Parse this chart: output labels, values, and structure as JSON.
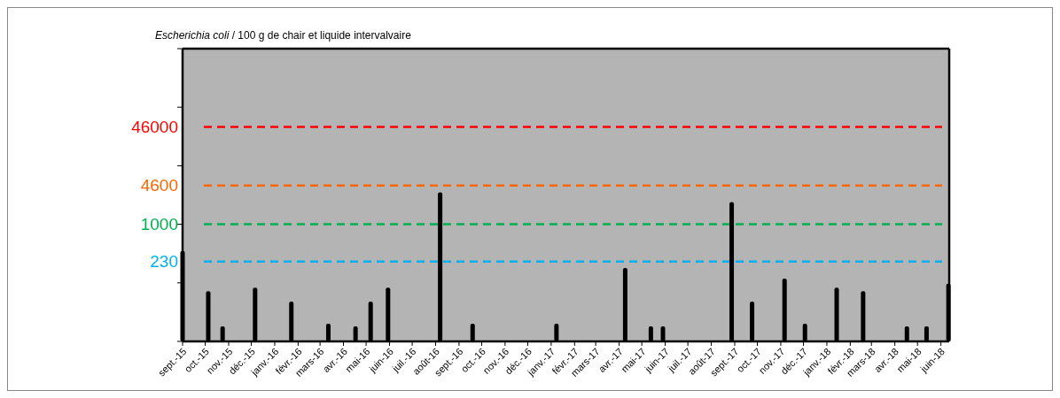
{
  "chart_data": {
    "type": "bar",
    "title": "Escherichia coli / 100 g de chair et liquide intervalvaire",
    "x": [
      "2015-09-01",
      "2015-10-05",
      "2015-10-24",
      "2015-12-06",
      "2016-01-23",
      "2016-03-12",
      "2016-04-17",
      "2016-05-07",
      "2016-05-30",
      "2016-08-07",
      "2016-09-19",
      "2017-01-08",
      "2017-04-09",
      "2017-05-13",
      "2017-05-29",
      "2017-08-28",
      "2017-09-24",
      "2017-11-06",
      "2017-12-03",
      "2018-01-14",
      "2018-02-18",
      "2018-04-17",
      "2018-05-13",
      "2018-06-11"
    ],
    "values": [
      350,
      72,
      18,
      83,
      48,
      20,
      18,
      48,
      83,
      3500,
      20,
      20,
      180,
      18,
      18,
      2400,
      48,
      118,
      20,
      83,
      72,
      18,
      18,
      97
    ],
    "color": "#000000",
    "log": true,
    "ylim": [
      10,
      1000000
    ],
    "yticks": [
      {
        "value": 10,
        "label": null
      },
      {
        "value": 100,
        "label": null
      },
      {
        "value": 1000,
        "label": null
      },
      {
        "value": 10000,
        "label": null
      },
      {
        "value": 100000,
        "label": null
      },
      {
        "value": 1000000,
        "label": null
      },
      230,
      1000,
      4600,
      46000
    ],
    "xlim": [
      "2015-09-01",
      "2018-06-12"
    ],
    "xticks": [
      {
        "value": "2015-09-01",
        "label": "sept.-15"
      },
      {
        "value": "2015-10-01",
        "label": "oct.-15"
      },
      {
        "value": "2015-11-01",
        "label": "nov.-15"
      },
      {
        "value": "2015-12-01",
        "label": "déc.-15"
      },
      {
        "value": "2016-01-01",
        "label": "janv.-16"
      },
      {
        "value": "2016-02-01",
        "label": "févr.-16"
      },
      {
        "value": "2016-03-01",
        "label": "mars-16"
      },
      {
        "value": "2016-04-01",
        "label": "avr.-16"
      },
      {
        "value": "2016-05-01",
        "label": "mai-16"
      },
      {
        "value": "2016-06-01",
        "label": "juin-16"
      },
      {
        "value": "2016-07-01",
        "label": "juil.-16"
      },
      {
        "value": "2016-08-01",
        "label": "août-16"
      },
      {
        "value": "2016-09-01",
        "label": "sept.-16"
      },
      {
        "value": "2016-10-01",
        "label": "oct.-16"
      },
      {
        "value": "2016-11-01",
        "label": "nov.-16"
      },
      {
        "value": "2016-12-01",
        "label": "déc.-16"
      },
      {
        "value": "2017-01-01",
        "label": "janv.-17"
      },
      {
        "value": "2017-02-01",
        "label": "févr.-17"
      },
      {
        "value": "2017-03-01",
        "label": "mars-17"
      },
      {
        "value": "2017-04-01",
        "label": "avr.-17"
      },
      {
        "value": "2017-05-01",
        "label": "mai-17"
      },
      {
        "value": "2017-06-01",
        "label": "juin-17"
      },
      {
        "value": "2017-07-01",
        "label": "juil.-17"
      },
      {
        "value": "2017-08-01",
        "label": "août-17"
      },
      {
        "value": "2017-09-01",
        "label": "sept.-17"
      },
      {
        "value": "2017-10-01",
        "label": "oct.-17"
      },
      {
        "value": "2017-11-01",
        "label": "nov.-17"
      },
      {
        "value": "2017-12-01",
        "label": "déc.-17"
      },
      {
        "value": "2018-01-01",
        "label": "janv.-18"
      },
      {
        "value": "2018-02-01",
        "label": "févr.-18"
      },
      {
        "value": "2018-03-01",
        "label": "mars-18"
      },
      {
        "value": "2018-04-01",
        "label": "avr.-18"
      },
      {
        "value": "2018-05-01",
        "label": "mai-18"
      },
      {
        "value": "2018-06-01",
        "label": "juin-18"
      }
    ],
    "ref_lines": [
      {
        "axis": "y",
        "value": 46000,
        "color": "#ff0000",
        "line_style": "dashed"
      },
      {
        "axis": "y",
        "value": 4600,
        "color": "#ff6600",
        "line_style": "dashed"
      },
      {
        "axis": "y",
        "value": 1000,
        "color": "#00b050",
        "line_style": "dashed"
      },
      {
        "axis": "y",
        "value": 230,
        "color": "#00b0f0",
        "line_style": "dashed"
      }
    ],
    "grid": false
  }
}
